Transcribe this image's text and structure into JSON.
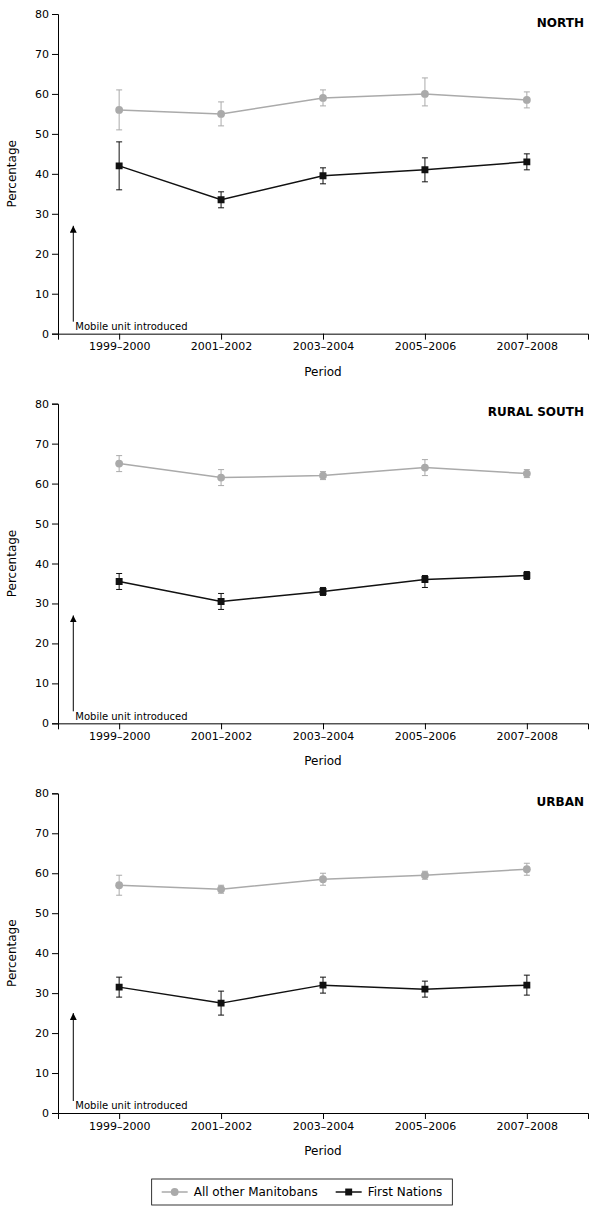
{
  "chart_data": [
    {
      "type": "line",
      "title": "NORTH",
      "categories": [
        "1999–2000",
        "2001–2002",
        "2003–2004",
        "2005–2006",
        "2007–2008"
      ],
      "series": [
        {
          "color": "#aaaaaa",
          "marker": "circle",
          "values": [
            56,
            55,
            59,
            60,
            58.5
          ],
          "error_lo": [
            5,
            3,
            2,
            3,
            2
          ],
          "error_hi": [
            5,
            3,
            2,
            4,
            2
          ]
        },
        {
          "color": "#111111",
          "marker": "square",
          "values": [
            42,
            33.5,
            39.5,
            41,
            43
          ],
          "error_lo": [
            6,
            2,
            2,
            3,
            2
          ],
          "error_hi": [
            6,
            2,
            2,
            3,
            2
          ]
        }
      ],
      "annotations": [
        {
          "text": "Mobile unit introduced",
          "y_tip": 27,
          "y_base": 3
        }
      ],
      "xlabel": "Period",
      "ylabel": "Percentage",
      "ylim": [
        0,
        80
      ],
      "yticks": [
        0,
        10,
        20,
        30,
        40,
        50,
        60,
        70,
        80
      ],
      "grid": false
    },
    {
      "type": "line",
      "title": "RURAL SOUTH",
      "categories": [
        "1999–2000",
        "2001–2002",
        "2003–2004",
        "2005–2006",
        "2007–2008"
      ],
      "series": [
        {
          "color": "#aaaaaa",
          "marker": "circle",
          "values": [
            65,
            61.5,
            62,
            64,
            62.5
          ],
          "error_lo": [
            2,
            2,
            1,
            2,
            1
          ],
          "error_hi": [
            2,
            2,
            1,
            2,
            1
          ]
        },
        {
          "color": "#111111",
          "marker": "square",
          "values": [
            35.5,
            30.5,
            33,
            36,
            37
          ],
          "error_lo": [
            2,
            2,
            1,
            2,
            1
          ],
          "error_hi": [
            2,
            2,
            1,
            1,
            1
          ]
        }
      ],
      "annotations": [
        {
          "text": "Mobile unit introduced",
          "y_tip": 27,
          "y_base": 3
        }
      ],
      "xlabel": "Period",
      "ylabel": "Percentage",
      "ylim": [
        0,
        80
      ],
      "yticks": [
        0,
        10,
        20,
        30,
        40,
        50,
        60,
        70,
        80
      ],
      "grid": false
    },
    {
      "type": "line",
      "title": "URBAN",
      "categories": [
        "1999–2000",
        "2001–2002",
        "2003–2004",
        "2005–2006",
        "2007–2008"
      ],
      "series": [
        {
          "name": "All other Manitobans",
          "color": "#aaaaaa",
          "marker": "circle",
          "values": [
            57,
            56,
            58.5,
            59.5,
            61
          ],
          "error_lo": [
            2.5,
            1,
            1.5,
            1,
            1.5
          ],
          "error_hi": [
            2.5,
            1,
            1.5,
            1,
            1.5
          ]
        },
        {
          "name": "First Nations",
          "color": "#111111",
          "marker": "square",
          "values": [
            31.5,
            27.5,
            32,
            31,
            32
          ],
          "error_lo": [
            2.5,
            3,
            2,
            2,
            2.5
          ],
          "error_hi": [
            2.5,
            3,
            2,
            2,
            2.5
          ]
        }
      ],
      "annotations": [
        {
          "text": "Mobile unit introduced",
          "y_tip": 25,
          "y_base": 3
        }
      ],
      "xlabel": "Period",
      "ylabel": "Percentage",
      "ylim": [
        0,
        80
      ],
      "yticks": [
        0,
        10,
        20,
        30,
        40,
        50,
        60,
        70,
        80
      ],
      "grid": false,
      "legend": "bottom"
    }
  ]
}
